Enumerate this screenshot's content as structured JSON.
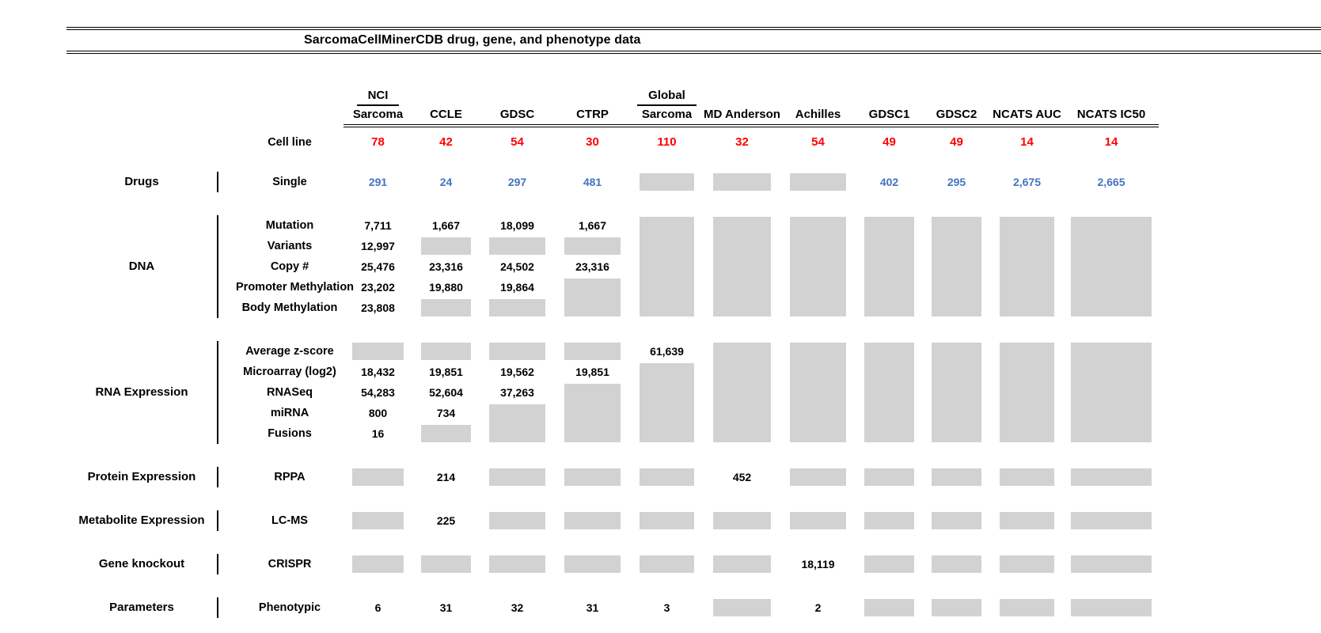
{
  "title": "SarcomaCellMinerCDB drug, gene, and phenotype data",
  "colors": {
    "cell_line_red": "#ff0000",
    "drug_blue": "#4472c4",
    "no_data_gray": "#d2d2d2"
  },
  "chart_data": {
    "type": "table",
    "title": "SarcomaCellMinerCDB drug, gene, and phenotype data",
    "no_data_marker": "G (gray block, optionally followed by row span count)",
    "columns": [
      {
        "top": "NCI",
        "label": "Sarcoma"
      },
      {
        "label": "CCLE"
      },
      {
        "label": "GDSC"
      },
      {
        "label": "CTRP"
      },
      {
        "top": "Global",
        "label": "Sarcoma"
      },
      {
        "label": "MD Anderson"
      },
      {
        "label": "Achilles"
      },
      {
        "label": "GDSC1"
      },
      {
        "label": "GDSC2"
      },
      {
        "label": "NCATS AUC"
      },
      {
        "label": "NCATS IC50"
      }
    ],
    "cell_line_row": {
      "label": "Cell line",
      "values": [
        "78",
        "42",
        "54",
        "30",
        "110",
        "32",
        "54",
        "49",
        "49",
        "14",
        "14"
      ]
    },
    "sections": [
      {
        "category": "Drugs",
        "value_color": "blue",
        "rows": [
          {
            "label": "Single",
            "cells": [
              "291",
              "24",
              "297",
              "481",
              "G",
              "G",
              "G",
              "402",
              "295",
              "2,675",
              "2,665"
            ]
          }
        ]
      },
      {
        "category": "DNA",
        "rows": [
          {
            "label": "Mutation",
            "cells": [
              "7,711",
              "1,667",
              "18,099",
              "1,667",
              "G5",
              "G5",
              "G5",
              "G5",
              "G5",
              "G5",
              "G5"
            ]
          },
          {
            "label": "Variants",
            "cells": [
              "12,997",
              "G",
              "G",
              "G",
              "",
              "",
              "",
              "",
              "",
              "",
              ""
            ]
          },
          {
            "label": "Copy #",
            "cells": [
              "25,476",
              "23,316",
              "24,502",
              "23,316",
              "",
              "",
              "",
              "",
              "",
              "",
              ""
            ]
          },
          {
            "label": "Promoter Methylation",
            "cells": [
              "23,202",
              "19,880",
              "19,864",
              "G2",
              "",
              "",
              "",
              "",
              "",
              "",
              ""
            ]
          },
          {
            "label": "Body Methylation",
            "cells": [
              "23,808",
              "G",
              "G",
              "",
              "",
              "",
              "",
              "",
              "",
              "",
              ""
            ]
          }
        ]
      },
      {
        "category": "RNA Expression",
        "rows": [
          {
            "label": "Average z-score",
            "cells": [
              "G",
              "G",
              "G",
              "G",
              "61,639",
              "G5",
              "G5",
              "G5",
              "G5",
              "G5",
              "G5"
            ]
          },
          {
            "label": "Microarray (log2)",
            "cells": [
              "18,432",
              "19,851",
              "19,562",
              "19,851",
              "G4",
              "",
              "",
              "",
              "",
              "",
              ""
            ]
          },
          {
            "label": "RNASeq",
            "cells": [
              "54,283",
              "52,604",
              "37,263",
              "G3",
              "",
              "",
              "",
              "",
              "",
              "",
              ""
            ]
          },
          {
            "label": "miRNA",
            "cells": [
              "800",
              "734",
              "G2",
              "",
              "",
              "",
              "",
              "",
              "",
              "",
              ""
            ]
          },
          {
            "label": "Fusions",
            "cells": [
              "16",
              "G",
              "",
              "",
              "",
              "",
              "",
              "",
              "",
              "",
              ""
            ]
          }
        ]
      },
      {
        "category": "Protein Expression",
        "rows": [
          {
            "label": "RPPA",
            "cells": [
              "G",
              "214",
              "G",
              "G",
              "G",
              "452",
              "G",
              "G",
              "G",
              "G",
              "G"
            ]
          }
        ]
      },
      {
        "category": "Metabolite Expression",
        "rows": [
          {
            "label": "LC-MS",
            "cells": [
              "G",
              "225",
              "G",
              "G",
              "G",
              "G",
              "G",
              "G",
              "G",
              "G",
              "G"
            ]
          }
        ]
      },
      {
        "category": "Gene knockout",
        "rows": [
          {
            "label": "CRISPR",
            "cells": [
              "G",
              "G",
              "G",
              "G",
              "G",
              "G",
              "18,119",
              "G",
              "G",
              "G",
              "G"
            ]
          }
        ]
      },
      {
        "category": "Parameters",
        "rows": [
          {
            "label": "Phenotypic",
            "cells": [
              "6",
              "31",
              "32",
              "31",
              "3",
              "G",
              "2",
              "G",
              "G",
              "G",
              "G"
            ]
          }
        ]
      }
    ]
  }
}
